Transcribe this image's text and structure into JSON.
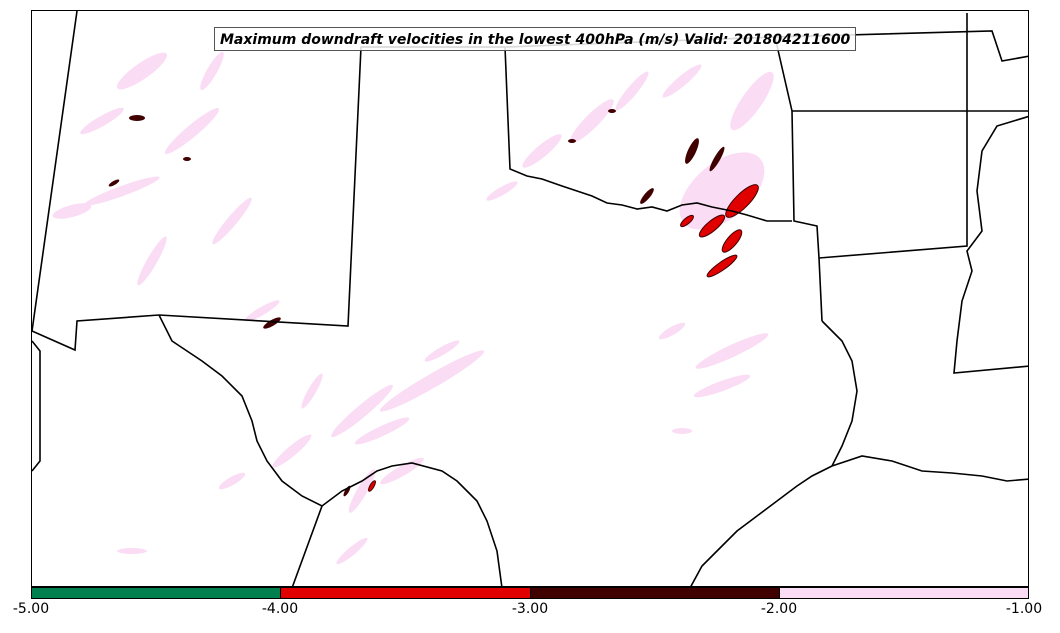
{
  "title": "Maximum downdraft velocities in the lowest 400hPa (m/s) Valid: 201804211600",
  "colorbar": {
    "ticks": [
      "-5.00",
      "-4.00",
      "-3.00",
      "-2.00",
      "-1.00"
    ],
    "bins": [
      {
        "from": -5.0,
        "to": -4.0,
        "color": "#007f4f"
      },
      {
        "from": -4.0,
        "to": -3.0,
        "color": "#e00000"
      },
      {
        "from": -3.0,
        "to": -2.0,
        "color": "#400000"
      },
      {
        "from": -2.0,
        "to": -1.0,
        "color": "#fadcf5"
      }
    ]
  },
  "colors": {
    "weak": "#fadcf5",
    "moderate": "#400000",
    "strong": "#e00000",
    "extreme": "#007f4f",
    "boundaries": "#000000"
  }
}
